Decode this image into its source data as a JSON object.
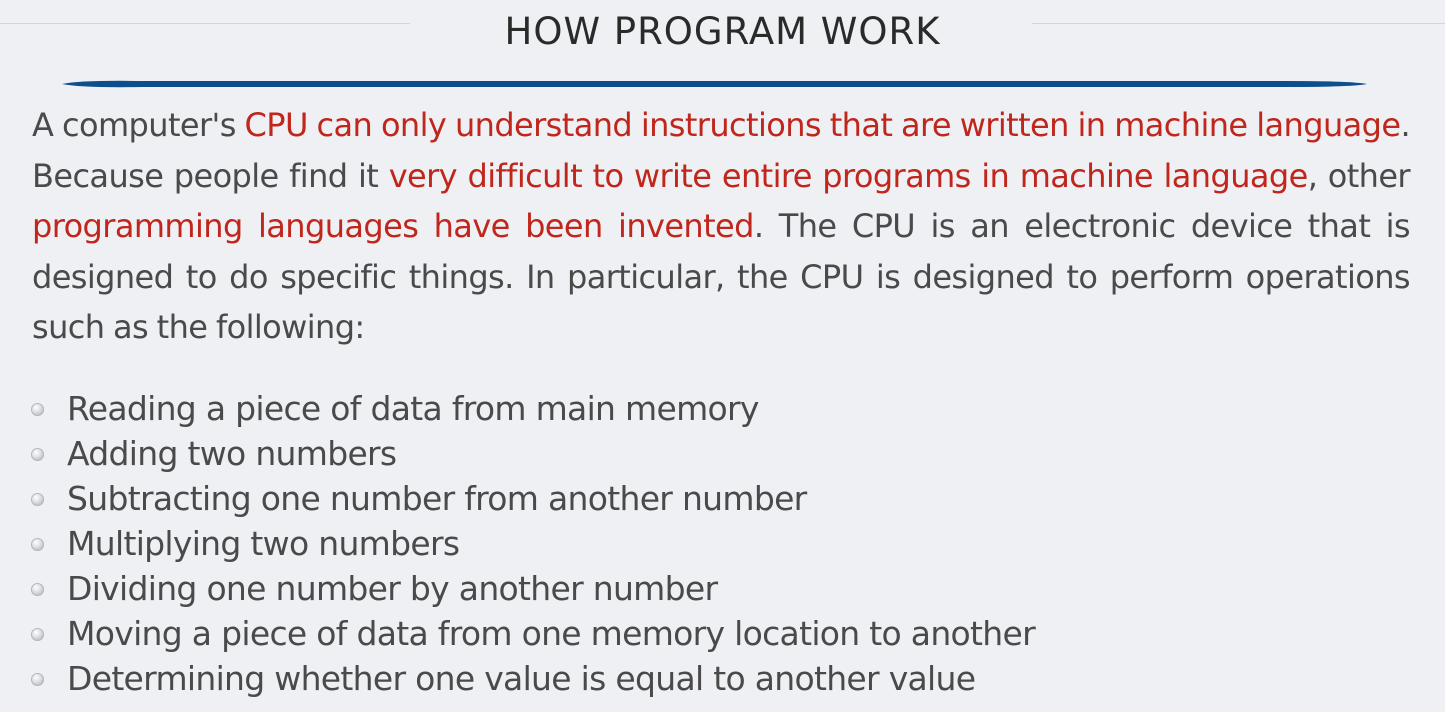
{
  "slide": {
    "title": "HOW PROGRAM WORK",
    "accent_color": "#0d4f8c",
    "highlight_color": "#c0261b",
    "paragraph": [
      {
        "text": "A computer's ",
        "highlight": false
      },
      {
        "text": "CPU can only understand instructions that are written in machine language",
        "highlight": true
      },
      {
        "text": ". Because people find it ",
        "highlight": false
      },
      {
        "text": "very difficult to write entire programs in machine language",
        "highlight": true
      },
      {
        "text": ", other ",
        "highlight": false
      },
      {
        "text": "programming languages have been invented",
        "highlight": true
      },
      {
        "text": ". The CPU is an electronic device that is designed to do specific things. In particular, the CPU is designed to perform operations such as the following:",
        "highlight": false
      }
    ],
    "bullet_icon": "circle-bullet-icon",
    "bullets": [
      "Reading a piece of data from main memory",
      "Adding two numbers",
      "Subtracting one number from another number",
      "Multiplying two numbers",
      "Dividing one number by another number",
      "Moving a piece of data from one memory location to another",
      "Determining whether one value is equal to another value"
    ]
  }
}
